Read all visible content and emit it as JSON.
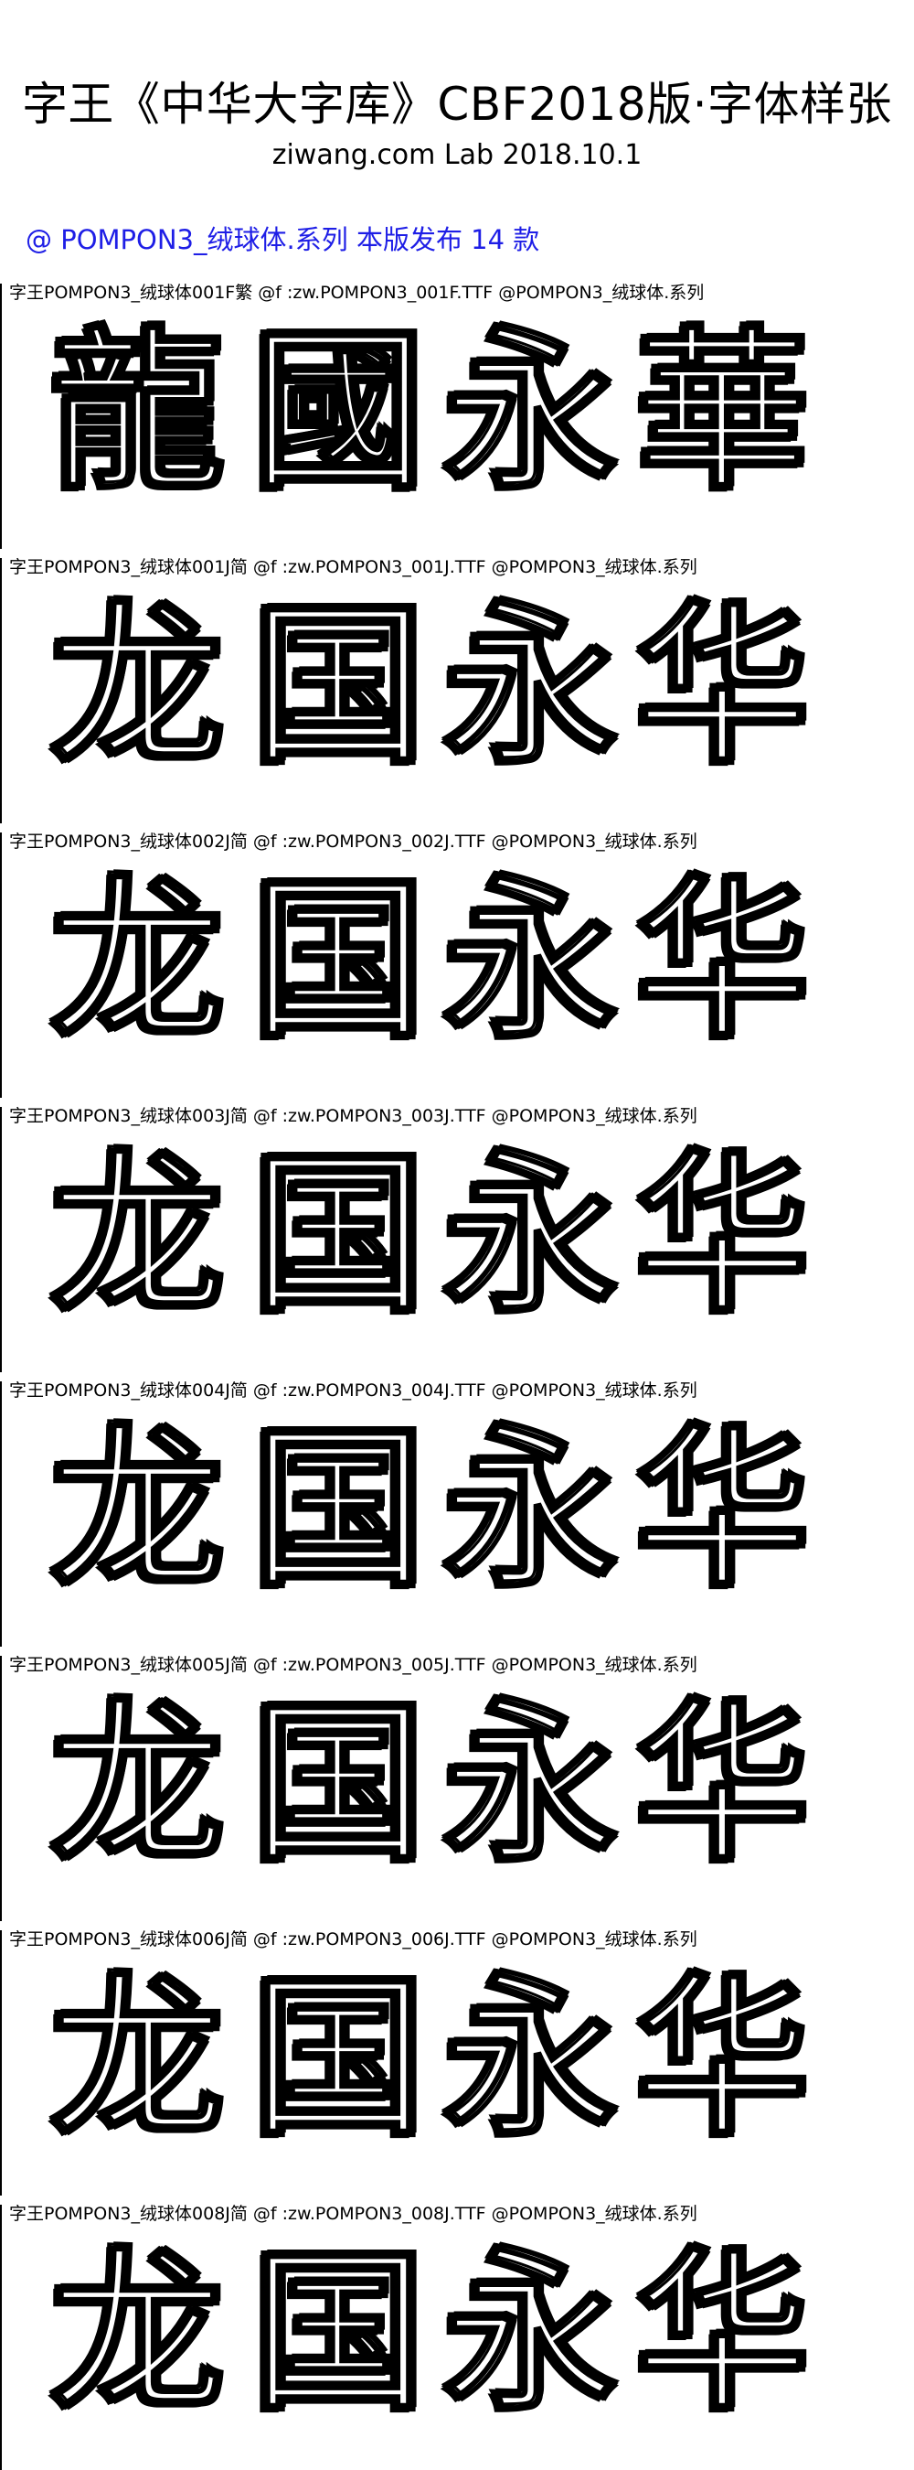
{
  "header": {
    "title": "字王《中华大字库》CBF2018版·字体样张",
    "subtitle": "ziwang.com Lab 2018.10.1",
    "series_line": "@ POMPON3_绒球体.系列 本版发布 14 款"
  },
  "specimens": [
    {
      "caption": "字王POMPON3_绒球体001F繁 @f :zw.POMPON3_001F.TTF @POMPON3_绒球体.系列",
      "chars": [
        "龍",
        "國",
        "永",
        "華"
      ]
    },
    {
      "caption": "字王POMPON3_绒球体001J简 @f :zw.POMPON3_001J.TTF @POMPON3_绒球体.系列",
      "chars": [
        "龙",
        "国",
        "永",
        "华"
      ]
    },
    {
      "caption": "字王POMPON3_绒球体002J简 @f :zw.POMPON3_002J.TTF @POMPON3_绒球体.系列",
      "chars": [
        "龙",
        "国",
        "永",
        "华"
      ]
    },
    {
      "caption": "字王POMPON3_绒球体003J简 @f :zw.POMPON3_003J.TTF @POMPON3_绒球体.系列",
      "chars": [
        "龙",
        "国",
        "永",
        "华"
      ]
    },
    {
      "caption": "字王POMPON3_绒球体004J简 @f :zw.POMPON3_004J.TTF @POMPON3_绒球体.系列",
      "chars": [
        "龙",
        "国",
        "永",
        "华"
      ]
    },
    {
      "caption": "字王POMPON3_绒球体005J简 @f :zw.POMPON3_005J.TTF @POMPON3_绒球体.系列",
      "chars": [
        "龙",
        "国",
        "永",
        "华"
      ]
    },
    {
      "caption": "字王POMPON3_绒球体006J简 @f :zw.POMPON3_006J.TTF @POMPON3_绒球体.系列",
      "chars": [
        "龙",
        "国",
        "永",
        "华"
      ]
    },
    {
      "caption": "字王POMPON3_绒球体008J简 @f :zw.POMPON3_008J.TTF @POMPON3_绒球体.系列",
      "chars": [
        "龙",
        "国",
        "永",
        "华"
      ]
    }
  ]
}
